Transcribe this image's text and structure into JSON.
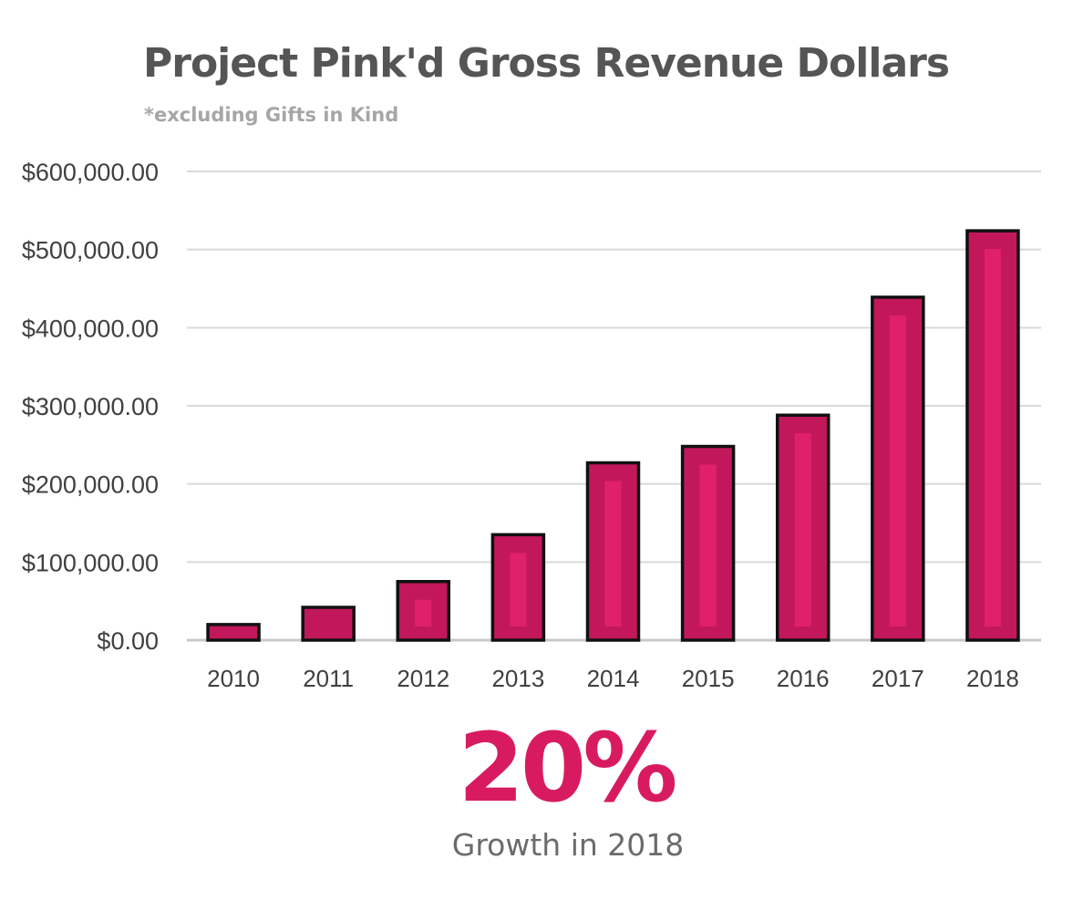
{
  "colors": {
    "bar_fill": "#c2185b",
    "bar_highlight": "#e0206a",
    "bar_outline": "#111111",
    "gridline": "#d9d9d9",
    "axis_text": "#404040",
    "title_text": "#555555",
    "subtitle_text": "#a6a6a6",
    "callout_value": "#d81b60",
    "callout_label": "#6b6b6b"
  },
  "chart_data": {
    "type": "bar",
    "title": "Project Pink'd Gross Revenue Dollars",
    "subtitle": "*excluding Gifts in Kind",
    "xlabel": "",
    "ylabel": "",
    "categories": [
      "2010",
      "2011",
      "2012",
      "2013",
      "2014",
      "2015",
      "2016",
      "2017",
      "2018"
    ],
    "values": [
      20000,
      42000,
      75000,
      135000,
      227000,
      248000,
      288000,
      439000,
      524000
    ],
    "ylim": [
      0,
      600000
    ],
    "y_ticks": [
      0,
      100000,
      200000,
      300000,
      400000,
      500000,
      600000
    ],
    "y_tick_labels": [
      "$0.00",
      "$100,000.00",
      "$200,000.00",
      "$300,000.00",
      "$400,000.00",
      "$500,000.00",
      "$600,000.00"
    ],
    "grid": true,
    "legend": "none"
  },
  "callout": {
    "value": "20%",
    "label": "Growth in 2018"
  }
}
